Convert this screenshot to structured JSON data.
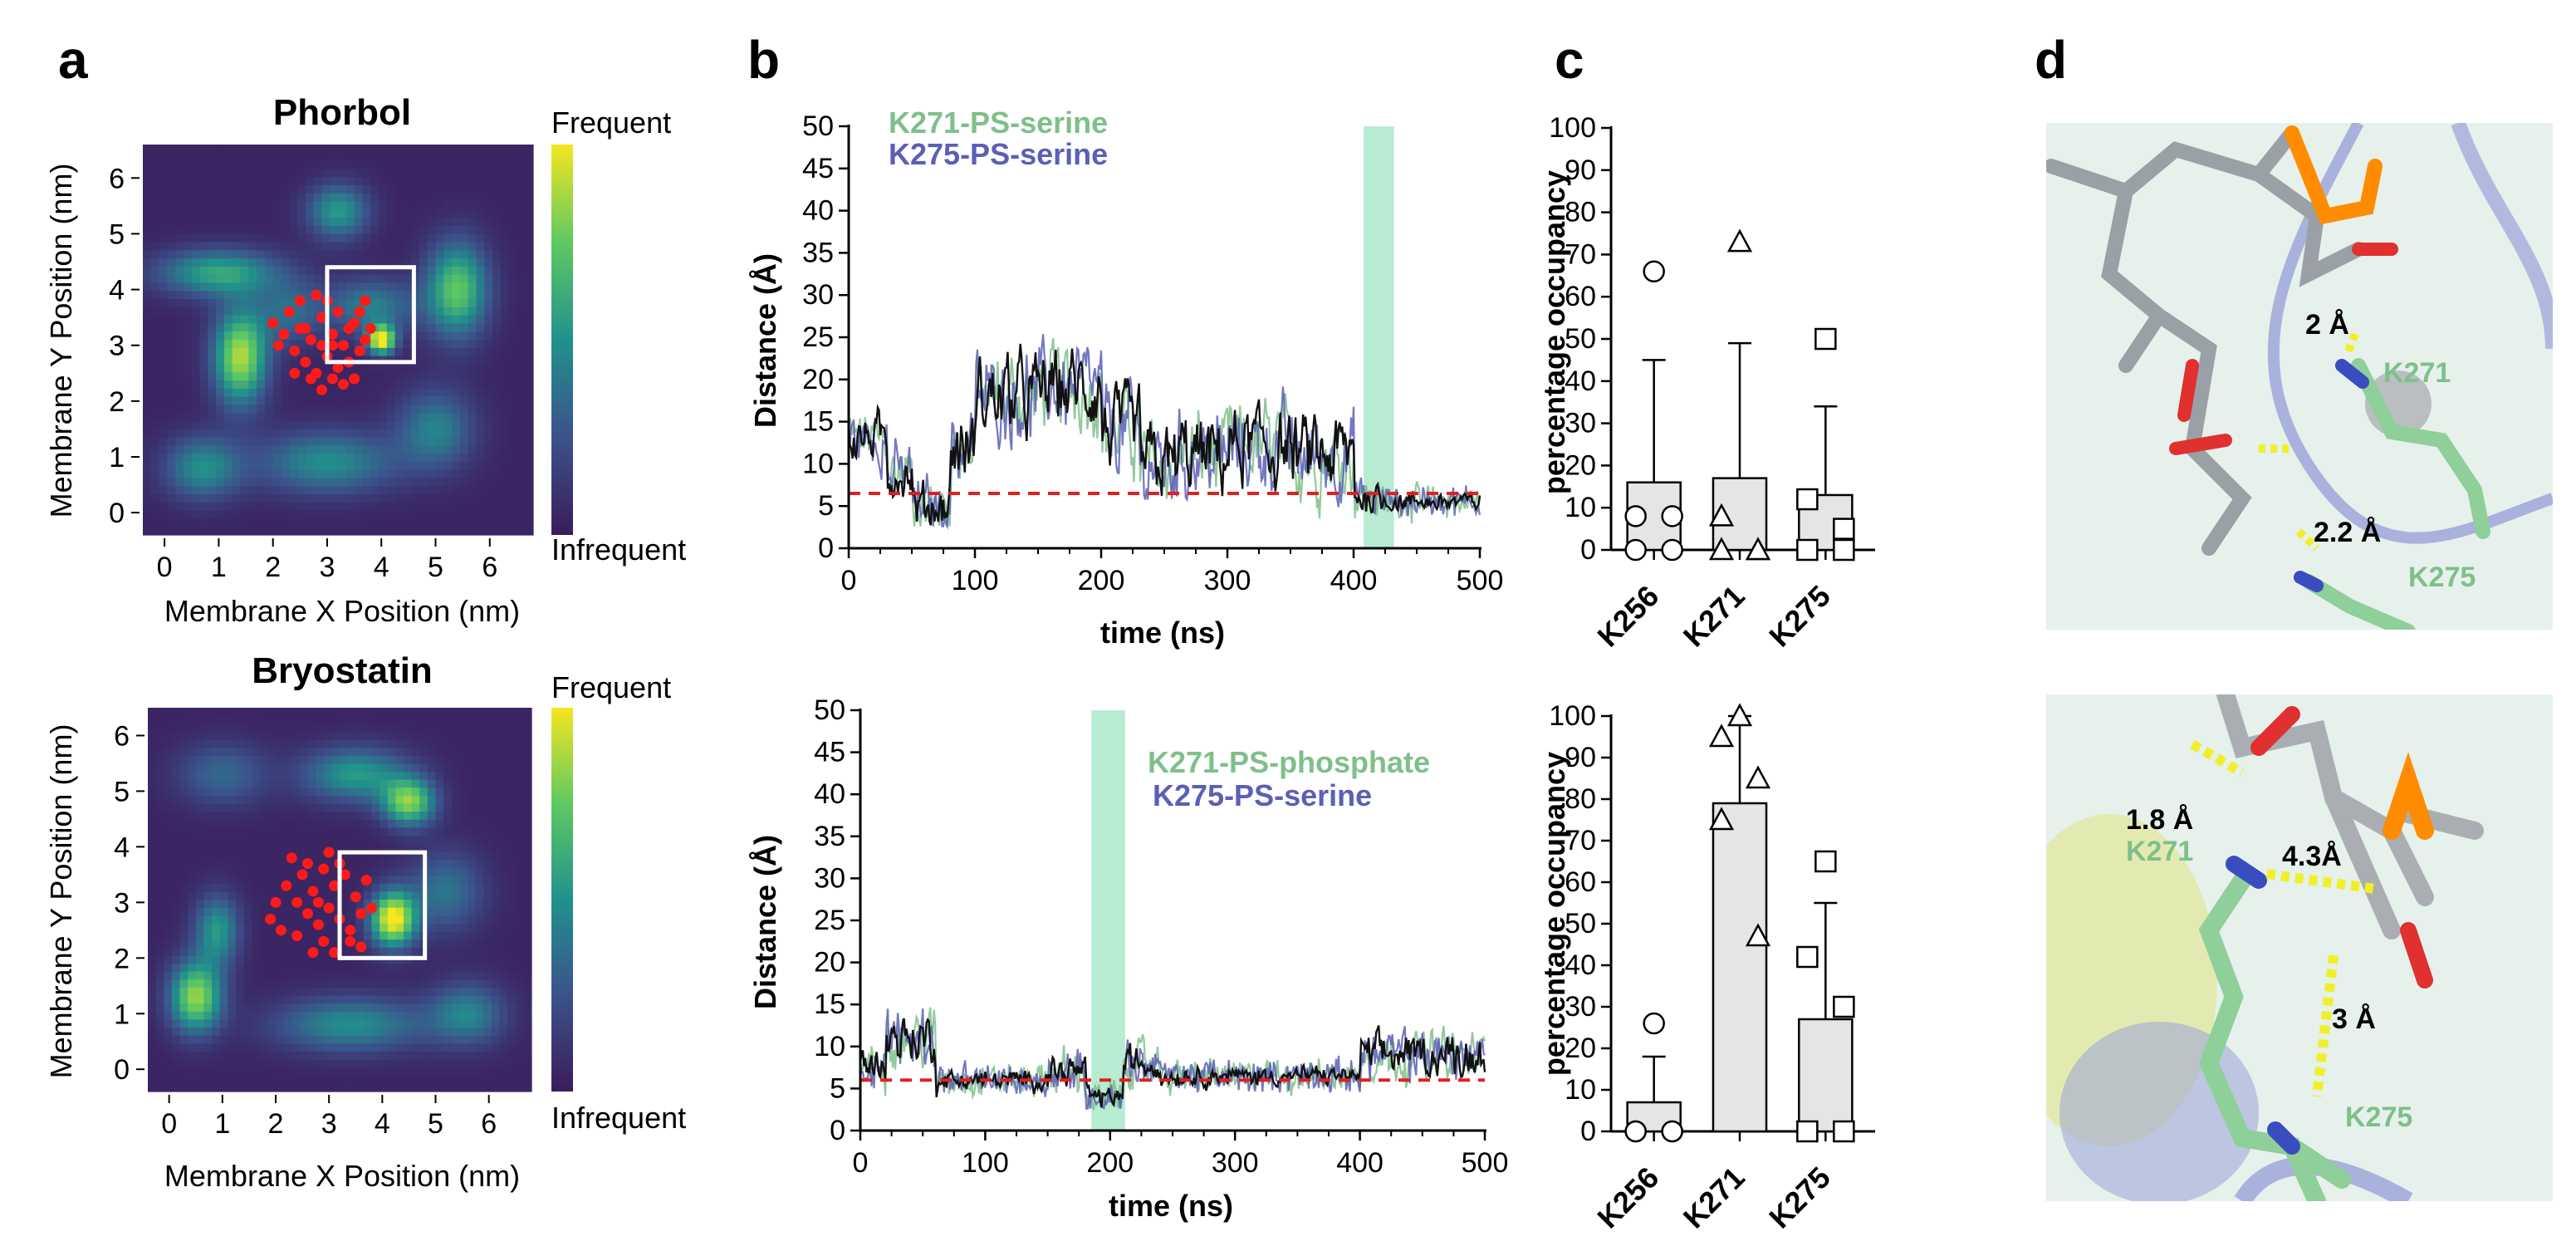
{
  "panel_labels": [
    "a",
    "b",
    "c",
    "d"
  ],
  "colors": {
    "green": "#7fbf8a",
    "blue": "#5b5fb5",
    "red_dash": "#e02020",
    "highlight": "#b8ecd2",
    "bar_fill": "#e4e6e6",
    "heat_low": "#3b1c5a",
    "heat_high": "#f5e61f"
  },
  "chart_data": [
    {
      "id": "a-top",
      "type": "heatmap",
      "title": "Phorbol",
      "xlabel": "Membrane X Position (nm)",
      "ylabel": "Membrane Y Position (nm)",
      "xlim": [
        -0.4,
        6.8
      ],
      "ylim": [
        -0.4,
        6.6
      ],
      "xticks": [
        0,
        1,
        2,
        3,
        4,
        5,
        6
      ],
      "yticks": [
        0,
        1,
        2,
        3,
        4,
        5,
        6
      ],
      "colorbar_labels": [
        "Frequent",
        "Infrequent"
      ],
      "hotspots": [
        {
          "x": 1.4,
          "y": 2.8,
          "amp": 0.85,
          "sx": 0.35,
          "sy": 0.6
        },
        {
          "x": 1.0,
          "y": 4.3,
          "amp": 0.55,
          "sx": 0.8,
          "sy": 0.3
        },
        {
          "x": 3.2,
          "y": 5.4,
          "amp": 0.5,
          "sx": 0.4,
          "sy": 0.35
        },
        {
          "x": 5.4,
          "y": 4.0,
          "amp": 0.7,
          "sx": 0.4,
          "sy": 0.6
        },
        {
          "x": 4.0,
          "y": 3.1,
          "amp": 1.0,
          "sx": 0.18,
          "sy": 0.18
        },
        {
          "x": 3.8,
          "y": 3.7,
          "amp": 0.4,
          "sx": 0.6,
          "sy": 0.35
        },
        {
          "x": 0.7,
          "y": 0.8,
          "amp": 0.45,
          "sx": 0.5,
          "sy": 0.4
        },
        {
          "x": 3.0,
          "y": 0.9,
          "amp": 0.45,
          "sx": 0.9,
          "sy": 0.4
        },
        {
          "x": 5.0,
          "y": 1.5,
          "amp": 0.4,
          "sx": 0.5,
          "sy": 0.5
        },
        {
          "x": 2.3,
          "y": 3.6,
          "amp": 0.3,
          "sx": 0.4,
          "sy": 0.4
        }
      ],
      "points": [
        [
          2.3,
          3.6
        ],
        [
          2.5,
          3.3
        ],
        [
          2.7,
          3.1
        ],
        [
          2.9,
          3.5
        ],
        [
          3.1,
          3.2
        ],
        [
          3.3,
          3.0
        ],
        [
          3.5,
          3.4
        ],
        [
          3.7,
          3.1
        ],
        [
          2.4,
          2.9
        ],
        [
          2.6,
          2.7
        ],
        [
          2.8,
          2.5
        ],
        [
          3.0,
          2.8
        ],
        [
          3.2,
          2.6
        ],
        [
          3.4,
          2.7
        ],
        [
          3.6,
          2.9
        ],
        [
          2.2,
          3.2
        ],
        [
          2.0,
          3.4
        ],
        [
          2.1,
          3.0
        ],
        [
          3.0,
          3.8
        ],
        [
          3.2,
          3.6
        ],
        [
          3.4,
          3.3
        ],
        [
          3.6,
          3.6
        ],
        [
          3.8,
          3.3
        ],
        [
          2.5,
          3.8
        ],
        [
          2.8,
          3.9
        ],
        [
          3.3,
          2.3
        ],
        [
          3.5,
          2.4
        ],
        [
          2.9,
          2.2
        ],
        [
          2.7,
          2.4
        ],
        [
          3.1,
          2.4
        ],
        [
          2.4,
          2.5
        ],
        [
          3.7,
          3.8
        ],
        [
          2.6,
          3.3
        ],
        [
          2.9,
          3.0
        ],
        [
          3.1,
          3.0
        ]
      ],
      "box": [
        3.0,
        2.7,
        4.6,
        4.4
      ]
    },
    {
      "id": "a-bottom",
      "type": "heatmap",
      "title": "Bryostatin",
      "xlabel": "Membrane X Position (nm)",
      "ylabel": "Membrane Y Position (nm)",
      "xlim": [
        -0.4,
        6.8
      ],
      "ylim": [
        -0.4,
        6.5
      ],
      "xticks": [
        0,
        1,
        2,
        3,
        4,
        5,
        6
      ],
      "yticks": [
        0,
        1,
        2,
        3,
        4,
        5,
        6
      ],
      "colorbar_labels": [
        "Frequent",
        "Infrequent"
      ],
      "hotspots": [
        {
          "x": 4.2,
          "y": 2.7,
          "amp": 1.0,
          "sx": 0.3,
          "sy": 0.35
        },
        {
          "x": 4.5,
          "y": 4.8,
          "amp": 0.75,
          "sx": 0.35,
          "sy": 0.3
        },
        {
          "x": 3.5,
          "y": 5.3,
          "amp": 0.5,
          "sx": 0.7,
          "sy": 0.35
        },
        {
          "x": 0.5,
          "y": 1.3,
          "amp": 0.8,
          "sx": 0.35,
          "sy": 0.45
        },
        {
          "x": 0.9,
          "y": 2.5,
          "amp": 0.5,
          "sx": 0.3,
          "sy": 0.45
        },
        {
          "x": 1.0,
          "y": 5.3,
          "amp": 0.3,
          "sx": 0.6,
          "sy": 0.4
        },
        {
          "x": 3.4,
          "y": 0.8,
          "amp": 0.45,
          "sx": 1.0,
          "sy": 0.35
        },
        {
          "x": 5.6,
          "y": 1.0,
          "amp": 0.4,
          "sx": 0.5,
          "sy": 0.4
        },
        {
          "x": 5.2,
          "y": 3.2,
          "amp": 0.35,
          "sx": 0.5,
          "sy": 0.5
        }
      ],
      "points": [
        [
          2.3,
          3.8
        ],
        [
          2.5,
          3.5
        ],
        [
          2.7,
          3.2
        ],
        [
          2.9,
          3.6
        ],
        [
          3.1,
          3.3
        ],
        [
          3.3,
          3.5
        ],
        [
          3.5,
          3.1
        ],
        [
          3.7,
          3.4
        ],
        [
          2.4,
          3.0
        ],
        [
          2.6,
          2.8
        ],
        [
          2.8,
          2.6
        ],
        [
          3.0,
          2.9
        ],
        [
          3.2,
          2.7
        ],
        [
          3.4,
          2.5
        ],
        [
          3.6,
          2.8
        ],
        [
          2.2,
          3.3
        ],
        [
          2.0,
          3.0
        ],
        [
          1.9,
          2.7
        ],
        [
          2.1,
          2.5
        ],
        [
          3.0,
          3.9
        ],
        [
          3.2,
          3.7
        ],
        [
          3.4,
          2.3
        ],
        [
          3.6,
          2.2
        ],
        [
          2.9,
          2.3
        ],
        [
          2.7,
          2.1
        ],
        [
          3.1,
          2.1
        ],
        [
          2.4,
          2.4
        ],
        [
          2.6,
          3.7
        ],
        [
          3.8,
          2.9
        ],
        [
          2.8,
          3.0
        ]
      ],
      "box": [
        3.2,
        2.0,
        4.8,
        3.9
      ]
    },
    {
      "id": "b-top",
      "type": "line",
      "xlabel": "time (ns)",
      "ylabel": "Distance (Å)",
      "xlim": [
        0,
        500
      ],
      "ylim": [
        0,
        50
      ],
      "xticks": [
        0,
        100,
        200,
        300,
        400,
        500
      ],
      "yticks": [
        0,
        5,
        10,
        15,
        20,
        25,
        30,
        35,
        40,
        45,
        50
      ],
      "highlight": [
        408,
        432
      ],
      "threshold": 6.5,
      "legend": [
        "K271-PS-serine",
        "K275-PS-serine"
      ],
      "segments": [
        [
          0,
          30,
          13,
          3
        ],
        [
          30,
          50,
          9,
          3
        ],
        [
          50,
          80,
          5,
          3
        ],
        [
          80,
          100,
          12,
          5
        ],
        [
          100,
          150,
          18,
          5
        ],
        [
          150,
          200,
          19,
          5
        ],
        [
          200,
          230,
          14,
          5
        ],
        [
          230,
          260,
          10,
          5
        ],
        [
          260,
          300,
          11,
          5
        ],
        [
          300,
          350,
          12,
          5
        ],
        [
          350,
          400,
          11,
          5
        ],
        [
          400,
          420,
          6,
          2
        ],
        [
          420,
          500,
          5.5,
          1
        ]
      ]
    },
    {
      "id": "b-bottom",
      "type": "line",
      "xlabel": "time (ns)",
      "ylabel": "Distance (Å)",
      "xlim": [
        0,
        500
      ],
      "ylim": [
        0,
        50
      ],
      "xticks": [
        0,
        100,
        200,
        300,
        400,
        500
      ],
      "yticks": [
        0,
        5,
        10,
        15,
        20,
        25,
        30,
        35,
        40,
        45,
        50
      ],
      "highlight": [
        185,
        212
      ],
      "threshold": 6,
      "legend": [
        "K271-PS-phosphate",
        "K275-PS-serine"
      ],
      "segments": [
        [
          0,
          20,
          8,
          2
        ],
        [
          20,
          60,
          11,
          3
        ],
        [
          60,
          150,
          6,
          1
        ],
        [
          150,
          180,
          7,
          2
        ],
        [
          180,
          210,
          4,
          1
        ],
        [
          210,
          240,
          8,
          2
        ],
        [
          240,
          400,
          6.5,
          1
        ],
        [
          400,
          500,
          9,
          2.5
        ]
      ]
    },
    {
      "id": "c-top",
      "type": "bar",
      "ylabel": "percentage occupancy",
      "categories": [
        "K256",
        "K271",
        "K275"
      ],
      "values": [
        16,
        17,
        13
      ],
      "err_upper": [
        45,
        49,
        34
      ],
      "ylim": [
        0,
        100
      ],
      "yticks": [
        0,
        10,
        20,
        30,
        40,
        50,
        60,
        70,
        80,
        90,
        100
      ],
      "markers": [
        "circle",
        "triangle",
        "square"
      ],
      "points": [
        [
          66,
          8,
          8,
          0,
          0
        ],
        [
          73,
          8,
          0,
          0,
          0
        ],
        [
          50,
          12,
          5,
          0,
          0
        ]
      ]
    },
    {
      "id": "c-bottom",
      "type": "bar",
      "ylabel": "percentage occupancy",
      "categories": [
        "K256",
        "K271",
        "K275"
      ],
      "values": [
        7,
        79,
        27
      ],
      "err_upper": [
        18,
        100,
        55
      ],
      "ylim": [
        0,
        100
      ],
      "yticks": [
        0,
        10,
        20,
        30,
        40,
        50,
        60,
        70,
        80,
        90,
        100
      ],
      "markers": [
        "circle",
        "triangle",
        "square"
      ],
      "points": [
        [
          26,
          0,
          0,
          0,
          0
        ],
        [
          100,
          95,
          85,
          75,
          47
        ],
        [
          65,
          42,
          30,
          0,
          0
        ]
      ]
    }
  ],
  "structures": {
    "top": {
      "labels": [
        "K271",
        "K275"
      ],
      "distances": [
        "2 Å",
        "2.2 Å"
      ]
    },
    "bottom": {
      "labels": [
        "K271",
        "K275"
      ],
      "distances": [
        "1.8 Å",
        "4.3Å",
        "3 Å"
      ]
    }
  }
}
